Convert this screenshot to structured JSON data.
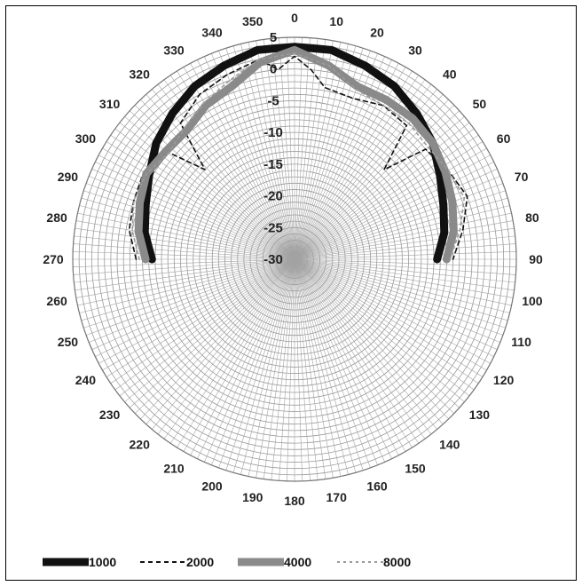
{
  "chart_data": {
    "type": "polar-line",
    "title": "",
    "angle_ticks": [
      "0",
      "10",
      "20",
      "30",
      "40",
      "50",
      "60",
      "70",
      "80",
      "90",
      "100",
      "110",
      "120",
      "130",
      "140",
      "150",
      "160",
      "170",
      "180",
      "190",
      "200",
      "210",
      "220",
      "230",
      "240",
      "250",
      "260",
      "270",
      "280",
      "290",
      "300",
      "310",
      "320",
      "330",
      "340",
      "350"
    ],
    "radial_ticks": [
      "5",
      "0",
      "-5",
      "-10",
      "-15",
      "-20",
      "-25",
      "-30"
    ],
    "radial_range": [
      -30,
      5
    ],
    "grid": "on",
    "legend_position": "bottom",
    "series": [
      {
        "name": "1000",
        "style": "solid-thick",
        "color": "#111111",
        "points": [
          [
            -90,
            -7.5
          ],
          [
            -80,
            -6
          ],
          [
            -70,
            -5
          ],
          [
            -60,
            -3.5
          ],
          [
            -50,
            -1.5
          ],
          [
            -40,
            0
          ],
          [
            -30,
            1.5
          ],
          [
            -20,
            2.5
          ],
          [
            -10,
            3.5
          ],
          [
            0,
            3.5
          ],
          [
            10,
            3.5
          ],
          [
            20,
            2.5
          ],
          [
            30,
            1.5
          ],
          [
            40,
            0
          ],
          [
            50,
            -1.5
          ],
          [
            60,
            -3.5
          ],
          [
            70,
            -5
          ],
          [
            80,
            -6
          ],
          [
            90,
            -7.5
          ]
        ]
      },
      {
        "name": "2000",
        "style": "dashed",
        "color": "#111111",
        "points": [
          [
            -90,
            -5
          ],
          [
            -80,
            -3.5
          ],
          [
            -70,
            -3
          ],
          [
            -60,
            -2.5
          ],
          [
            -50,
            -3.5
          ],
          [
            -45,
            -10
          ],
          [
            -40,
            -2
          ],
          [
            -30,
            0
          ],
          [
            -20,
            1
          ],
          [
            -10,
            2
          ],
          [
            -5,
            0
          ],
          [
            0,
            2
          ],
          [
            5,
            0
          ],
          [
            10,
            -2.5
          ],
          [
            20,
            -3
          ],
          [
            30,
            -2
          ],
          [
            40,
            -2.5
          ],
          [
            45,
            -10
          ],
          [
            50,
            -3
          ],
          [
            60,
            -2
          ],
          [
            70,
            -1
          ],
          [
            80,
            -3
          ],
          [
            90,
            -5
          ]
        ]
      },
      {
        "name": "4000",
        "style": "solid-thick",
        "color": "#8a8a8a",
        "points": [
          [
            -90,
            -6.5
          ],
          [
            -80,
            -5
          ],
          [
            -70,
            -4
          ],
          [
            -60,
            -3
          ],
          [
            -50,
            -3.5
          ],
          [
            -40,
            -3.5
          ],
          [
            -30,
            -2
          ],
          [
            -20,
            -1
          ],
          [
            -10,
            1.5
          ],
          [
            0,
            3
          ],
          [
            10,
            1
          ],
          [
            20,
            -1
          ],
          [
            30,
            -1
          ],
          [
            40,
            -1
          ],
          [
            50,
            -1.5
          ],
          [
            60,
            -2.5
          ],
          [
            70,
            -3.5
          ],
          [
            80,
            -4.5
          ],
          [
            90,
            -6
          ]
        ]
      },
      {
        "name": "8000",
        "style": "dotted",
        "color": "#9a9a9a",
        "points": [
          [
            -90,
            -5.5
          ],
          [
            -80,
            -4
          ],
          [
            -70,
            -3
          ],
          [
            -60,
            -3
          ],
          [
            -50,
            -4
          ],
          [
            -40,
            -3
          ],
          [
            -30,
            -1.5
          ],
          [
            -20,
            0
          ],
          [
            -10,
            2
          ],
          [
            0,
            2.5
          ],
          [
            10,
            1
          ],
          [
            20,
            -1.5
          ],
          [
            30,
            -2
          ],
          [
            40,
            -2
          ],
          [
            50,
            -2.5
          ],
          [
            60,
            -2
          ],
          [
            70,
            -1.5
          ],
          [
            80,
            -3.5
          ],
          [
            90,
            -5.5
          ]
        ]
      }
    ]
  }
}
